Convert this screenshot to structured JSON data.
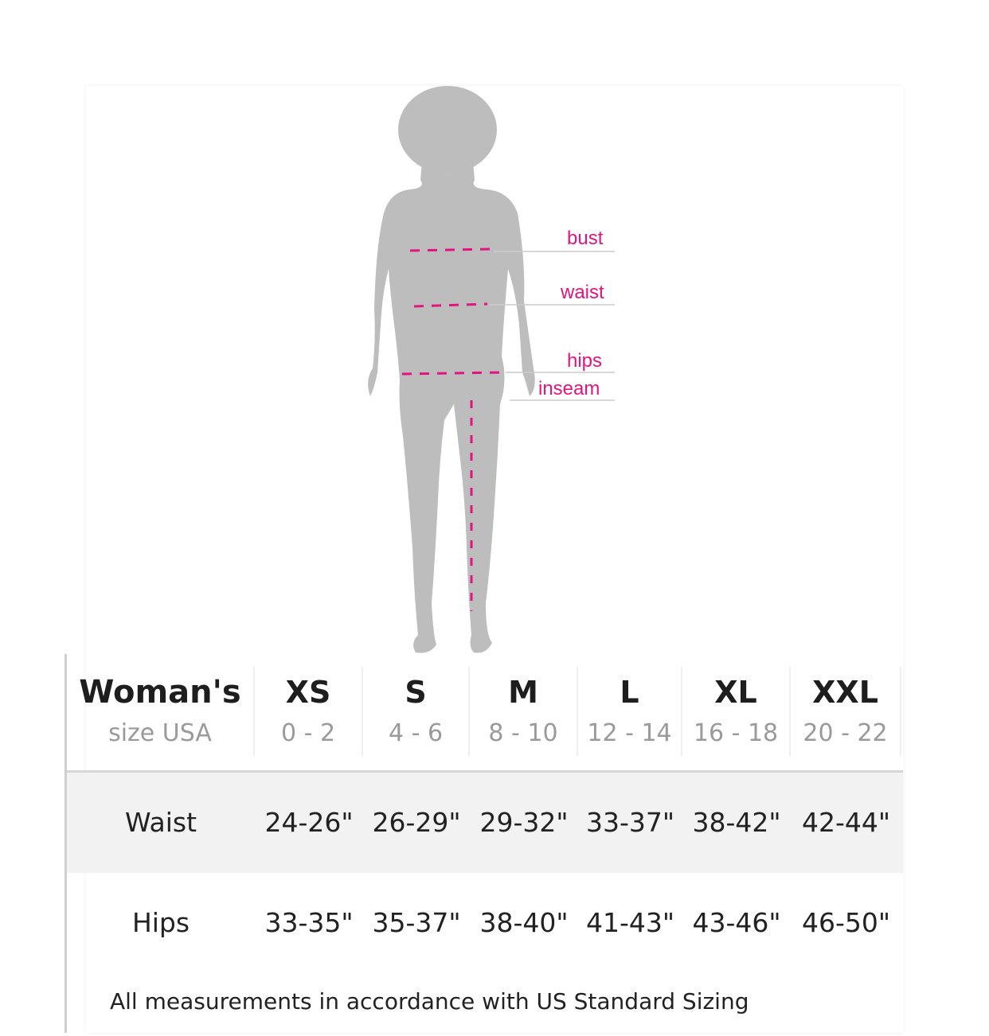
{
  "figure": {
    "labels": {
      "bust": "bust",
      "waist": "waist",
      "hips": "hips",
      "inseam": "inseam"
    },
    "accent_color": "#e3137f",
    "silhouette_color": "#bdbdbd"
  },
  "table": {
    "header": {
      "title": "Woman's",
      "subtitle": "size USA"
    },
    "sizes": [
      {
        "size": "XS",
        "range": "0 - 2"
      },
      {
        "size": "S",
        "range": "4 - 6"
      },
      {
        "size": "M",
        "range": "8 - 10"
      },
      {
        "size": "L",
        "range": "12 - 14"
      },
      {
        "size": "XL",
        "range": "16 - 18"
      },
      {
        "size": "XXL",
        "range": "20 - 22"
      }
    ],
    "rows": [
      {
        "label": "Waist",
        "values": [
          "24-26\"",
          "26-29\"",
          "29-32\"",
          "33-37\"",
          "38-42\"",
          "42-44\""
        ]
      },
      {
        "label": "Hips",
        "values": [
          "33-35\"",
          "35-37\"",
          "38-40\"",
          "41-43\"",
          "43-46\"",
          "46-50\""
        ]
      }
    ]
  },
  "footnote": "All measurements in accordance with US Standard Sizing"
}
